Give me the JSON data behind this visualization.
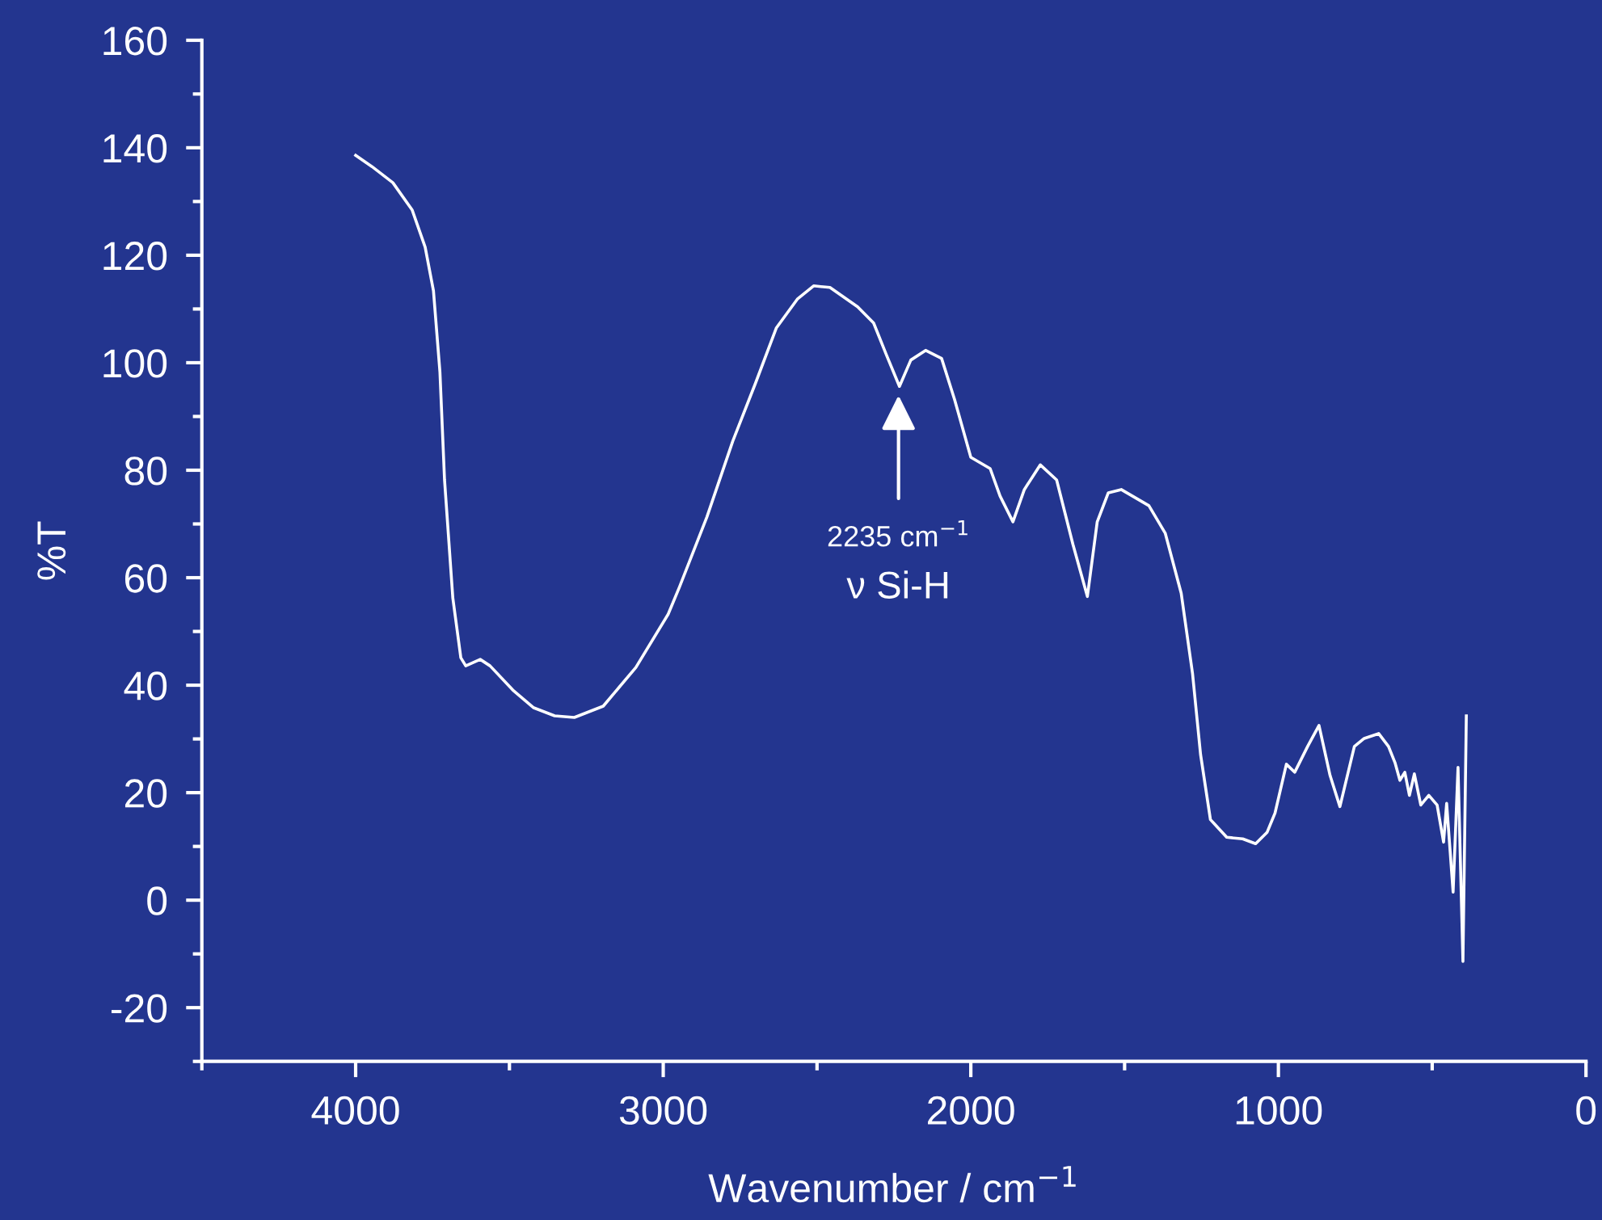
{
  "chart_data": {
    "type": "line",
    "xlabel": "Wavenumber / cm$^{−1}$",
    "ylabel": "%T",
    "xlim": [
      4500,
      0
    ],
    "ylim": [
      -30,
      160
    ],
    "xticks": [
      {
        "value": 4500,
        "label": null
      },
      4000,
      {
        "value": 3500,
        "label": null
      },
      3000,
      {
        "value": 2500,
        "label": null
      },
      2000,
      {
        "value": 1500,
        "label": null
      },
      1000,
      {
        "value": 500,
        "label": null
      },
      0
    ],
    "yticks": [
      {
        "value": -30,
        "label": null
      },
      -20,
      {
        "value": -10,
        "label": null
      },
      0,
      {
        "value": 10,
        "label": null
      },
      20,
      {
        "value": 30,
        "label": null
      },
      40,
      {
        "value": 50,
        "label": null
      },
      60,
      {
        "value": 70,
        "label": null
      },
      80,
      {
        "value": 90,
        "label": null
      },
      100,
      {
        "value": 110,
        "label": null
      },
      120,
      {
        "value": 130,
        "label": null
      },
      140,
      {
        "value": 150,
        "label": null
      },
      160
    ],
    "grid": false,
    "marker": "none",
    "line_style": "solid",
    "series": [
      {
        "color": "#ffffff",
        "x": [
          4000,
          3947,
          3879,
          3816,
          3774,
          3747,
          3726,
          3711,
          3684,
          3658,
          3642,
          3595,
          3563,
          3489,
          3421,
          3353,
          3289,
          3195,
          3089,
          2984,
          2947,
          2858,
          2774,
          2700,
          2632,
          2563,
          2511,
          2458,
          2368,
          2316,
          2274,
          2232,
          2195,
          2147,
          2095,
          2053,
          2000,
          1937,
          1905,
          1863,
          1826,
          1774,
          1721,
          1668,
          1621,
          1589,
          1553,
          1511,
          1421,
          1368,
          1316,
          1279,
          1253,
          1221,
          1168,
          1116,
          1074,
          1037,
          1011,
          974,
          947,
          905,
          868,
          832,
          800,
          753,
          721,
          674,
          642,
          621,
          605,
          589,
          574,
          558,
          537,
          511,
          484,
          463,
          453,
          432,
          416,
          400,
          389
        ],
        "values": [
          138.6,
          136.5,
          133.5,
          128.4,
          121.5,
          113.4,
          98.3,
          78.2,
          56.2,
          45.1,
          43.6,
          44.8,
          43.6,
          39.1,
          35.8,
          34.3,
          34.0,
          36.1,
          43.3,
          53.2,
          58.3,
          71.3,
          85.4,
          96.2,
          106.5,
          111.9,
          114.3,
          114.0,
          110.4,
          107.4,
          101.4,
          95.6,
          100.5,
          102.3,
          100.8,
          93.2,
          82.4,
          80.3,
          75.2,
          70.4,
          76.4,
          81.0,
          78.2,
          66.2,
          56.5,
          70.4,
          75.8,
          76.4,
          73.4,
          68.3,
          57.1,
          42.1,
          27.1,
          15.0,
          11.7,
          11.4,
          10.5,
          12.6,
          16.2,
          25.3,
          23.8,
          28.6,
          32.5,
          23.2,
          17.4,
          28.6,
          30.1,
          31.0,
          28.6,
          25.6,
          22.3,
          23.8,
          19.5,
          23.5,
          17.7,
          19.5,
          17.7,
          10.8,
          18.0,
          1.5,
          24.7,
          -11.4,
          34.3
        ]
      }
    ],
    "annotations": [
      {
        "text": "2235 cm$^{−1}$",
        "x": 2235,
        "y": 95.6
      },
      "ν Si-H"
    ]
  }
}
